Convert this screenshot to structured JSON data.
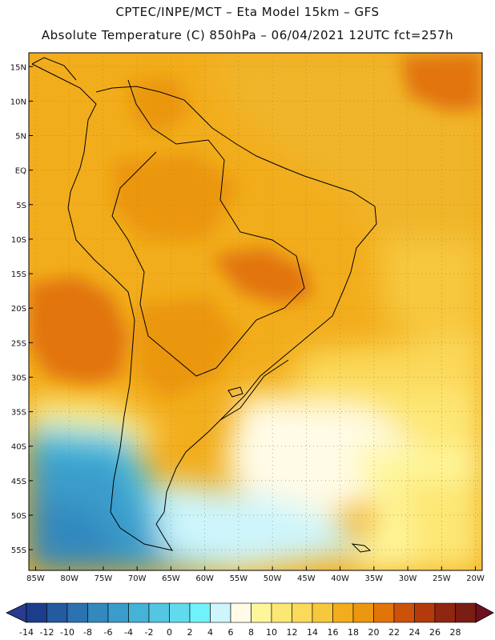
{
  "title": {
    "line1": "CPTEC/INPE/MCT –  Eta Model 15km – GFS",
    "line2": "Absolute Temperature (C) 850hPa – 06/04/2021 12UTC fct=257h"
  },
  "axes": {
    "lat_labels": [
      "15N",
      "10N",
      "5N",
      "EQ",
      "5S",
      "10S",
      "15S",
      "20S",
      "25S",
      "30S",
      "35S",
      "40S",
      "45S",
      "50S",
      "55S"
    ],
    "lat_values": [
      15,
      10,
      5,
      0,
      -5,
      -10,
      -15,
      -20,
      -25,
      -30,
      -35,
      -40,
      -45,
      -50,
      -55
    ],
    "lon_labels": [
      "85W",
      "80W",
      "75W",
      "70W",
      "65W",
      "60W",
      "55W",
      "50W",
      "45W",
      "40W",
      "35W",
      "30W",
      "25W",
      "20W"
    ],
    "lon_values": [
      -85,
      -80,
      -75,
      -70,
      -65,
      -60,
      -55,
      -50,
      -45,
      -40,
      -35,
      -30,
      -25,
      -20
    ],
    "lat_range": [
      -58,
      17
    ],
    "lon_range": [
      -86,
      -19
    ]
  },
  "colorbar": {
    "labels": [
      "-14",
      "-12",
      "-10",
      "-8",
      "-6",
      "-4",
      "-2",
      "0",
      "2",
      "4",
      "6",
      "8",
      "10",
      "12",
      "14",
      "16",
      "18",
      "20",
      "22",
      "24",
      "26",
      "28"
    ],
    "colors": [
      "#1c3d8c",
      "#245aa0",
      "#2b72b0",
      "#3388be",
      "#3a9ccb",
      "#45b2d8",
      "#52c6e3",
      "#60dbee",
      "#70f2fa",
      "#cdf5fb",
      "#fffbe6",
      "#fef69b",
      "#fde774",
      "#fbd95a",
      "#f7c73d",
      "#f2ad1c",
      "#eb9710",
      "#e2740a",
      "#cc520a",
      "#b33a0a",
      "#902510",
      "#7a1e14"
    ],
    "under_color": "#2a3b8f",
    "over_color": "#6e1020"
  },
  "colors": {
    "land_outline": "#000000",
    "grid": "#888888"
  }
}
